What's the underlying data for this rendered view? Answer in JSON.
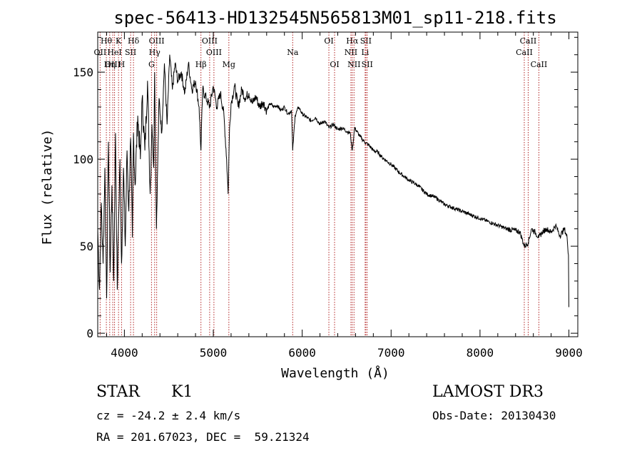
{
  "chart_data": {
    "type": "line",
    "title": "spec-56413-HD132545N565813M01_sp11-218.fits",
    "xlabel": "Wavelength (Å)",
    "ylabel": "Flux (relative)",
    "xlim": [
      3700,
      9100
    ],
    "ylim": [
      -2,
      173
    ],
    "xticks": [
      4000,
      5000,
      6000,
      7000,
      8000,
      9000
    ],
    "yticks": [
      0,
      50,
      100,
      150
    ],
    "series": [
      {
        "name": "flux",
        "x": [
          3700,
          3720,
          3740,
          3760,
          3780,
          3800,
          3820,
          3840,
          3860,
          3880,
          3900,
          3920,
          3933,
          3950,
          3968,
          3990,
          4010,
          4030,
          4050,
          4070,
          4090,
          4102,
          4120,
          4150,
          4180,
          4200,
          4230,
          4260,
          4290,
          4310,
          4330,
          4340,
          4360,
          4390,
          4420,
          4450,
          4480,
          4510,
          4540,
          4570,
          4600,
          4640,
          4680,
          4720,
          4760,
          4800,
          4840,
          4861,
          4880,
          4920,
          4960,
          5000,
          5040,
          5080,
          5120,
          5150,
          5167,
          5183,
          5200,
          5240,
          5280,
          5320,
          5360,
          5400,
          5440,
          5480,
          5520,
          5560,
          5600,
          5640,
          5680,
          5720,
          5760,
          5800,
          5840,
          5880,
          5893,
          5920,
          5960,
          6000,
          6050,
          6100,
          6150,
          6200,
          6250,
          6300,
          6350,
          6400,
          6450,
          6500,
          6540,
          6563,
          6590,
          6650,
          6700,
          6750,
          6800,
          6850,
          6900,
          6950,
          7000,
          7100,
          7200,
          7300,
          7400,
          7500,
          7600,
          7700,
          7800,
          7900,
          8000,
          8100,
          8200,
          8300,
          8400,
          8450,
          8498,
          8542,
          8580,
          8620,
          8662,
          8700,
          8750,
          8800,
          8850,
          8900,
          8950,
          8980,
          8995,
          9000
        ],
        "values": [
          60,
          25,
          75,
          40,
          95,
          20,
          110,
          35,
          85,
          30,
          115,
          25,
          60,
          100,
          40,
          95,
          50,
          105,
          70,
          112,
          55,
          115,
          85,
          125,
          100,
          135,
          105,
          145,
          80,
          120,
          95,
          150,
          60,
          135,
          115,
          155,
          120,
          160,
          140,
          155,
          145,
          150,
          138,
          155,
          140,
          145,
          130,
          105,
          140,
          135,
          130,
          142,
          130,
          138,
          125,
          100,
          80,
          118,
          132,
          142,
          130,
          140,
          135,
          138,
          132,
          136,
          130,
          133,
          128,
          132,
          130,
          131,
          128,
          130,
          126,
          128,
          105,
          125,
          130,
          126,
          124,
          122,
          124,
          120,
          122,
          118,
          120,
          117,
          118,
          116,
          115,
          105,
          118,
          113,
          110,
          108,
          105,
          104,
          101,
          99,
          97,
          92,
          88,
          85,
          80,
          78,
          74,
          72,
          70,
          68,
          66,
          64,
          62,
          60,
          59,
          58,
          50,
          52,
          60,
          58,
          55,
          58,
          60,
          58,
          62,
          56,
          60,
          55,
          45,
          15
        ]
      }
    ],
    "line_labels": [
      {
        "label": "Hθ",
        "wavelength": 3797,
        "row": 1
      },
      {
        "label": "OII",
        "wavelength": 3727,
        "row": 2
      },
      {
        "label": "OIII",
        "wavelength": 3869,
        "row": 3
      },
      {
        "label": "K",
        "wavelength": 3934,
        "row": 1
      },
      {
        "label": "HeI",
        "wavelength": 3889,
        "row": 2
      },
      {
        "label": "Hη",
        "wavelength": 3835,
        "row": 3
      },
      {
        "label": "H",
        "wavelength": 3968,
        "row": 3
      },
      {
        "label": "SII",
        "wavelength": 4070,
        "row": 2
      },
      {
        "label": "Hδ",
        "wavelength": 4102,
        "row": 1
      },
      {
        "label": "OIII",
        "wavelength": 4363,
        "row": 1
      },
      {
        "label": "Hγ",
        "wavelength": 4340,
        "row": 2
      },
      {
        "label": "G",
        "wavelength": 4305,
        "row": 3
      },
      {
        "label": "OIII",
        "wavelength": 4959,
        "row": 1
      },
      {
        "label": "OIII",
        "wavelength": 5007,
        "row": 2
      },
      {
        "label": "Hβ",
        "wavelength": 4861,
        "row": 3
      },
      {
        "label": "Mg",
        "wavelength": 5175,
        "row": 3
      },
      {
        "label": "Na",
        "wavelength": 5893,
        "row": 2
      },
      {
        "label": "OI",
        "wavelength": 6300,
        "row": 1
      },
      {
        "label": "OI",
        "wavelength": 6364,
        "row": 3
      },
      {
        "label": "Hα",
        "wavelength": 6563,
        "row": 1
      },
      {
        "label": "NII",
        "wavelength": 6548,
        "row": 2
      },
      {
        "label": "NII",
        "wavelength": 6583,
        "row": 3
      },
      {
        "label": "SII",
        "wavelength": 6716,
        "row": 1
      },
      {
        "label": "Li",
        "wavelength": 6708,
        "row": 2
      },
      {
        "label": "SII",
        "wavelength": 6731,
        "row": 3
      },
      {
        "label": "CaII",
        "wavelength": 8542,
        "row": 1
      },
      {
        "label": "CaII",
        "wavelength": 8498,
        "row": 2
      },
      {
        "label": "CaII",
        "wavelength": 8662,
        "row": 3
      }
    ],
    "line_color": "#b22222"
  },
  "info": {
    "class_label": "STAR",
    "subclass": "K1",
    "redshift": "cz = -24.2 ± 2.4 km/s",
    "coords": "RA = 201.67023, DEC =  59.21324",
    "survey": "LAMOST DR3",
    "obs_date": "Obs-Date: 20130430"
  }
}
